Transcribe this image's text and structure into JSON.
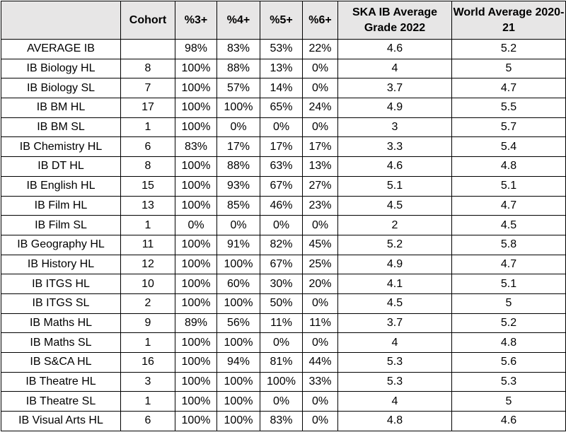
{
  "table": {
    "headers": [
      "",
      "Cohort",
      "%3+",
      "%4+",
      "%5+",
      "%6+",
      "SKA IB Average Grade 2022",
      "World Average 2020-21"
    ],
    "rows": [
      [
        "AVERAGE IB",
        "",
        "98%",
        "83%",
        "53%",
        "22%",
        "4.6",
        "5.2"
      ],
      [
        "IB Biology HL",
        "8",
        "100%",
        "88%",
        "13%",
        "0%",
        "4",
        "5"
      ],
      [
        "IB Biology SL",
        "7",
        "100%",
        "57%",
        "14%",
        "0%",
        "3.7",
        "4.7"
      ],
      [
        "IB BM HL",
        "17",
        "100%",
        "100%",
        "65%",
        "24%",
        "4.9",
        "5.5"
      ],
      [
        "IB BM SL",
        "1",
        "100%",
        "0%",
        "0%",
        "0%",
        "3",
        "5.7"
      ],
      [
        "IB Chemistry HL",
        "6",
        "83%",
        "17%",
        "17%",
        "17%",
        "3.3",
        "5.4"
      ],
      [
        "IB DT HL",
        "8",
        "100%",
        "88%",
        "63%",
        "13%",
        "4.6",
        "4.8"
      ],
      [
        "IB English HL",
        "15",
        "100%",
        "93%",
        "67%",
        "27%",
        "5.1",
        "5.1"
      ],
      [
        "IB Film HL",
        "13",
        "100%",
        "85%",
        "46%",
        "23%",
        "4.5",
        "4.7"
      ],
      [
        "IB Film SL",
        "1",
        "0%",
        "0%",
        "0%",
        "0%",
        "2",
        "4.5"
      ],
      [
        "IB Geography HL",
        "11",
        "100%",
        "91%",
        "82%",
        "45%",
        "5.2",
        "5.8"
      ],
      [
        "IB History HL",
        "12",
        "100%",
        "100%",
        "67%",
        "25%",
        "4.9",
        "4.7"
      ],
      [
        "IB ITGS HL",
        "10",
        "100%",
        "60%",
        "30%",
        "20%",
        "4.1",
        "5.1"
      ],
      [
        "IB ITGS SL",
        "2",
        "100%",
        "100%",
        "50%",
        "0%",
        "4.5",
        "5"
      ],
      [
        "IB Maths HL",
        "9",
        "89%",
        "56%",
        "11%",
        "11%",
        "3.7",
        "5.2"
      ],
      [
        "IB Maths SL",
        "1",
        "100%",
        "100%",
        "0%",
        "0%",
        "4",
        "4.8"
      ],
      [
        "IB S&CA HL",
        "16",
        "100%",
        "94%",
        "81%",
        "44%",
        "5.3",
        "5.6"
      ],
      [
        "IB Theatre HL",
        "3",
        "100%",
        "100%",
        "100%",
        "33%",
        "5.3",
        "5.3"
      ],
      [
        "IB Theatre SL",
        "1",
        "100%",
        "100%",
        "0%",
        "0%",
        "4",
        "5"
      ],
      [
        "IB Visual Arts HL",
        "6",
        "100%",
        "100%",
        "83%",
        "0%",
        "4.8",
        "4.6"
      ]
    ]
  },
  "colors": {
    "header_bg": "#e7e6e6",
    "border": "#000000"
  }
}
